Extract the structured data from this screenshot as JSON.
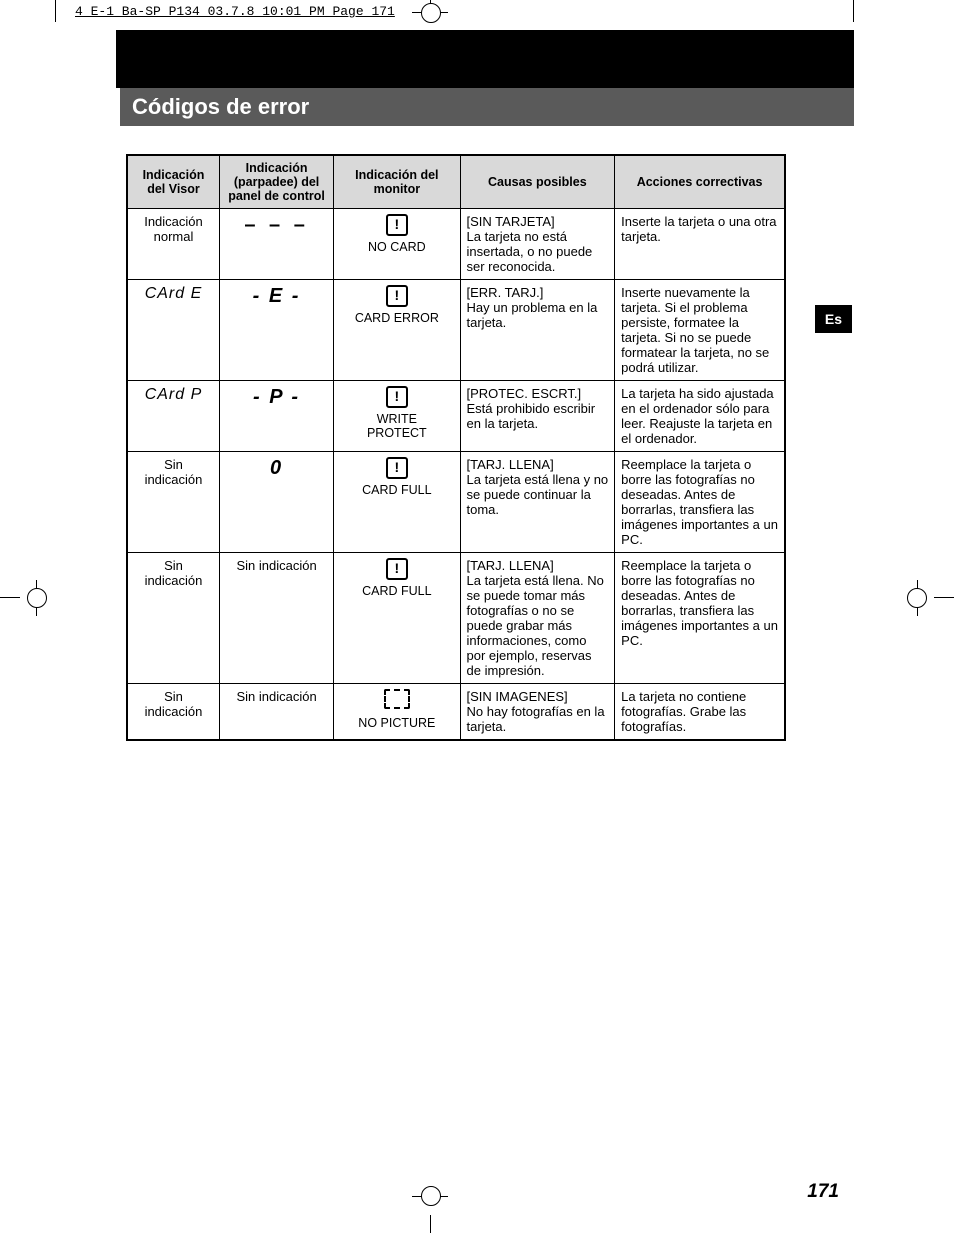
{
  "slugline": "4 E-1 Ba-SP P134  03.7.8 10:01 PM  Page 171",
  "lang_tab": "Es",
  "section_title": "Códigos de error",
  "page_number": "171",
  "headers": {
    "c1": "Indicación del Visor",
    "c2": "Indicación (parpadee) del panel de control",
    "c3": "Indicación del monitor",
    "c4": "Causas posibles",
    "c5": "Acciones correctivas"
  },
  "rows": [
    {
      "visor": "Indicación normal",
      "panel": "– – –",
      "panel_style": "dash3",
      "monitor_icon": "!",
      "monitor_label": "NO CARD",
      "cause": "[SIN TARJETA]\nLa tarjeta no está insertada, o no puede ser reconocida.",
      "action": "Inserte la tarjeta o una otra tarjeta."
    },
    {
      "visor_seg": "CArd  E",
      "panel": "- E -",
      "panel_style": "seg-big",
      "monitor_icon": "!",
      "monitor_label": "CARD ERROR",
      "cause": "[ERR. TARJ.]\nHay un problema en la tarjeta.",
      "action": "Inserte nuevamente la tarjeta. Si el problema persiste, formatee la tarjeta. Si no se puede formatear la tarjeta, no se podrá utilizar."
    },
    {
      "visor_seg": "CArd  P",
      "panel": "- P -",
      "panel_style": "seg-big",
      "monitor_icon": "!",
      "monitor_label": "WRITE PROTECT",
      "cause": "[PROTEC. ESCRT.]\nEstá prohibido escribir en la tarjeta.",
      "action": "La tarjeta ha sido ajustada en el ordenador sólo para leer. Reajuste la tarjeta en el ordenador."
    },
    {
      "visor": "Sin indicación",
      "panel": "0",
      "panel_style": "seg-big",
      "monitor_icon": "!",
      "monitor_label": "CARD FULL",
      "cause": "[TARJ. LLENA]\nLa tarjeta está llena y no se puede continuar la toma.",
      "action": "Reemplace la tarjeta o borre las fotografías no deseadas. Antes de borrarlas, transfiera las imágenes importantes a un PC."
    },
    {
      "visor": "Sin indicación",
      "panel": "Sin indicación",
      "panel_style": "",
      "monitor_icon": "!",
      "monitor_label": "CARD FULL",
      "cause": "[TARJ. LLENA]\nLa tarjeta está llena. No se puede tomar más fotografías o no se puede grabar más informaciones, como por ejemplo, reservas de impresión.",
      "action": "Reemplace la tarjeta o borre las fotografías no deseadas. Antes de borrarlas, transfiera las imágenes importantes a un PC."
    },
    {
      "visor": "Sin indicación",
      "panel": "Sin indicación",
      "panel_style": "",
      "monitor_icon_dash": true,
      "monitor_label": "NO PICTURE",
      "cause": "[SIN IMAGENES]\nNo hay fotografías en la tarjeta.",
      "action": "La tarjeta no contiene fotografías. Grabe las fotografías."
    }
  ]
}
